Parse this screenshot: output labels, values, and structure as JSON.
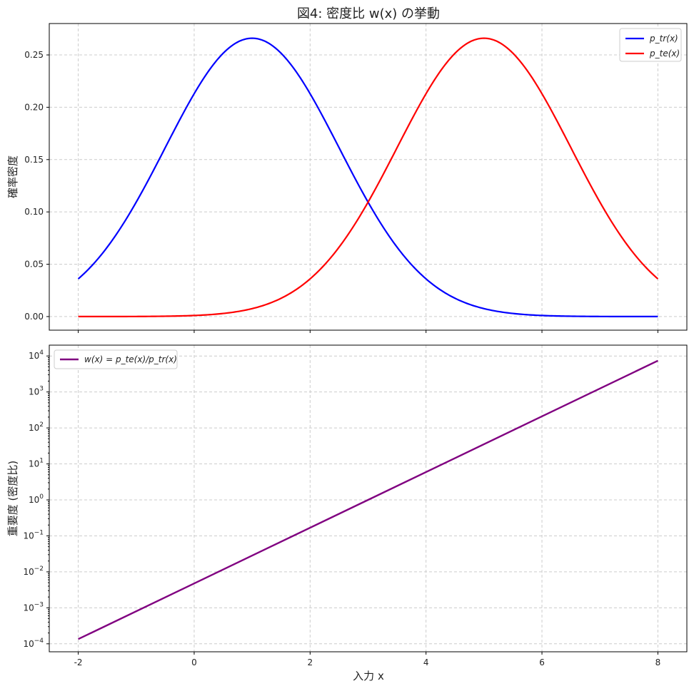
{
  "figure": {
    "title": "図4: 密度比 w(x) の挙動",
    "xlabel": "入力 x"
  },
  "chart_data": [
    {
      "type": "line",
      "ylabel": "確率密度",
      "xlim": [
        -2.5,
        8.5
      ],
      "ylim": [
        -0.013,
        0.28
      ],
      "x_ticks": [
        -2,
        0,
        2,
        4,
        6,
        8
      ],
      "y_ticks": [
        0.0,
        0.05,
        0.1,
        0.15,
        0.2,
        0.25
      ],
      "y_tick_labels": [
        "0.00",
        "0.05",
        "0.10",
        "0.15",
        "0.20",
        "0.25"
      ],
      "grid": true,
      "legend_position": "top-right",
      "series": [
        {
          "name": "p_tr(x)",
          "color": "#0000ff",
          "x": [
            -2,
            -1.5,
            -1,
            -0.5,
            0,
            0.5,
            1,
            1.5,
            2,
            2.5,
            3,
            3.5,
            4,
            4.5,
            5,
            5.5,
            6,
            6.5,
            7,
            7.5,
            8
          ],
          "y": [
            0.036,
            0.065,
            0.1,
            0.16,
            0.213,
            0.251,
            0.266,
            0.251,
            0.213,
            0.16,
            0.108,
            0.065,
            0.036,
            0.017,
            0.007,
            0.003,
            0.001,
            0.0003,
            0.0001,
            2e-05,
            4e-06
          ]
        },
        {
          "name": "p_te(x)",
          "color": "#ff0000",
          "x": [
            -2,
            -1.5,
            -1,
            -0.5,
            0,
            0.5,
            1,
            1.5,
            2,
            2.5,
            3,
            3.5,
            4,
            4.5,
            5,
            5.5,
            6,
            6.5,
            7,
            7.5,
            8
          ],
          "y": [
            4e-06,
            2e-05,
            0.0001,
            0.0003,
            0.001,
            0.003,
            0.007,
            0.017,
            0.036,
            0.065,
            0.108,
            0.16,
            0.213,
            0.251,
            0.266,
            0.251,
            0.213,
            0.16,
            0.108,
            0.065,
            0.036
          ]
        }
      ]
    },
    {
      "type": "line",
      "ylabel": "重要度 (密度比)",
      "yscale": "log",
      "xlim": [
        -2.5,
        8.5
      ],
      "ylim": [
        6e-05,
        20000
      ],
      "x_ticks": [
        -2,
        0,
        2,
        4,
        6,
        8
      ],
      "x_tick_labels": [
        "-2",
        "0",
        "2",
        "4",
        "6",
        "8"
      ],
      "y_tick_exponents": [
        -4,
        -3,
        -2,
        -1,
        0,
        1,
        2,
        3,
        4
      ],
      "grid": true,
      "legend_position": "top-left",
      "series": [
        {
          "name": "w(x) = p_te(x)/p_tr(x)",
          "color": "#800080",
          "x": [
            -2,
            8
          ],
          "y": [
            0.000135,
            7400
          ]
        }
      ]
    }
  ]
}
